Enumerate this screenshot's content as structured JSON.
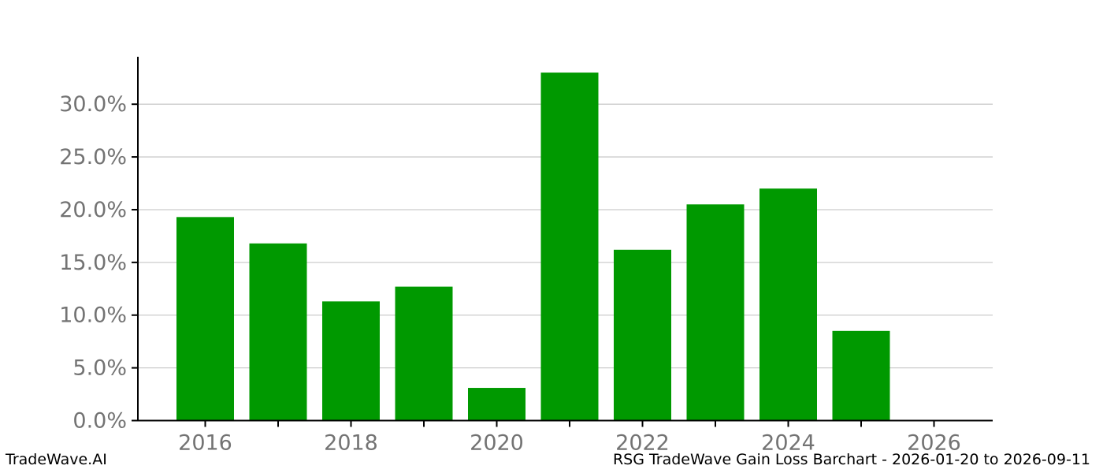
{
  "footer": {
    "brand": "TradeWave.AI",
    "title": "RSG TradeWave Gain Loss Barchart - 2026-01-20 to 2026-09-11"
  },
  "chart_data": {
    "type": "bar",
    "categories": [
      "2016",
      "2017",
      "2018",
      "2019",
      "2020",
      "2021",
      "2022",
      "2023",
      "2024",
      "2025",
      "2026"
    ],
    "values": [
      19.3,
      16.8,
      11.3,
      12.7,
      3.1,
      33.0,
      16.2,
      20.5,
      22.0,
      8.5,
      0.0
    ],
    "title": "",
    "xlabel": "",
    "ylabel": "",
    "ylim": [
      0,
      34.5
    ],
    "ytick_values": [
      0,
      5,
      10,
      15,
      20,
      25,
      30
    ],
    "ytick_labels": [
      "0.0%",
      "5.0%",
      "10.0%",
      "15.0%",
      "20.0%",
      "25.0%",
      "30.0%"
    ],
    "xtick_labels": [
      "2016",
      "2018",
      "2020",
      "2022",
      "2024",
      "2026"
    ],
    "grid": true,
    "legend": false,
    "colors": {
      "bar": "#009900",
      "gridline": "#cccccc",
      "axis": "#000000",
      "tick_label": "#737373"
    }
  }
}
